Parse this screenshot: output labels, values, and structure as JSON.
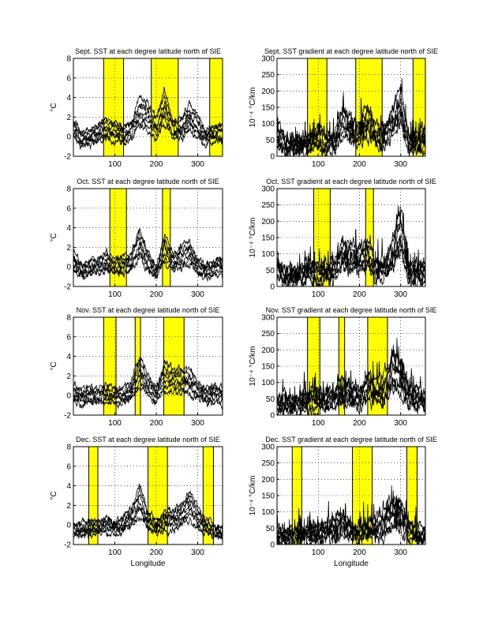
{
  "colors": {
    "band": "#ffff00",
    "line": "#000000",
    "axes": "#000000"
  },
  "chart_data": [
    {
      "type": "line",
      "title": "Sept. SST at each degree latitude north of SIE",
      "xlabel": "",
      "ylabel": "°C",
      "xlim": [
        0,
        360
      ],
      "ylim": [
        -2,
        8
      ],
      "xticks": [
        100,
        200,
        300
      ],
      "yticks": [
        -2,
        0,
        2,
        4,
        6,
        8
      ],
      "grid": true,
      "highlight_bands": [
        [
          73,
          121
        ],
        [
          188,
          253
        ],
        [
          329,
          360
        ]
      ],
      "n_series": 7,
      "series_profile": {
        "x": [
          0,
          20,
          40,
          60,
          80,
          100,
          120,
          140,
          160,
          180,
          200,
          220,
          240,
          260,
          280,
          300,
          320,
          340,
          360
        ],
        "y": [
          0.8,
          -0.3,
          0,
          0.3,
          0.8,
          0.5,
          0.2,
          0.6,
          2.5,
          2,
          1,
          3,
          0.8,
          0.8,
          2,
          1,
          0,
          0.3,
          0.5
        ]
      }
    },
    {
      "type": "line",
      "title": "Sept. SST gradient at each degree latitude north of SIE",
      "xlabel": "",
      "ylabel": "10⁻⁴ °C/km",
      "xlim": [
        0,
        360
      ],
      "ylim": [
        0,
        300
      ],
      "xticks": [
        100,
        200,
        300
      ],
      "yticks": [
        0,
        50,
        100,
        150,
        200,
        250,
        300
      ],
      "grid": true,
      "highlight_bands": [
        [
          74,
          121
        ],
        [
          191,
          255
        ],
        [
          330,
          360
        ]
      ],
      "n_series": 7,
      "series_profile": {
        "x": [
          0,
          20,
          40,
          60,
          80,
          100,
          120,
          140,
          160,
          180,
          200,
          220,
          240,
          260,
          280,
          300,
          320,
          340,
          360
        ],
        "y": [
          70,
          35,
          35,
          30,
          40,
          60,
          45,
          40,
          110,
          80,
          70,
          110,
          60,
          60,
          110,
          150,
          40,
          40,
          50
        ]
      }
    },
    {
      "type": "line",
      "title": "Oct. SST at each degree latitude north of SIE",
      "xlabel": "",
      "ylabel": "°C",
      "xlim": [
        0,
        360
      ],
      "ylim": [
        -2,
        8
      ],
      "xticks": [
        100,
        200,
        300
      ],
      "yticks": [
        -2,
        0,
        2,
        4,
        6,
        8
      ],
      "grid": true,
      "highlight_bands": [
        [
          88,
          128
        ],
        [
          215,
          234
        ]
      ],
      "n_series": 7,
      "series_profile": {
        "x": [
          0,
          20,
          40,
          60,
          80,
          100,
          120,
          140,
          160,
          180,
          200,
          220,
          240,
          260,
          280,
          300,
          320,
          340,
          360
        ],
        "y": [
          0.5,
          -0.3,
          0,
          0,
          0.6,
          0,
          0.3,
          0.5,
          2.5,
          0.5,
          -0.5,
          2,
          0.5,
          1,
          1.5,
          0,
          -0.5,
          0,
          0.2
        ]
      }
    },
    {
      "type": "line",
      "title": "Oct. SST gradient at each degree latitude north of SIE",
      "xlabel": "",
      "ylabel": "10⁻⁴ °C/km",
      "xlim": [
        0,
        360
      ],
      "ylim": [
        0,
        300
      ],
      "xticks": [
        100,
        200,
        300
      ],
      "yticks": [
        0,
        50,
        100,
        150,
        200,
        250,
        300
      ],
      "grid": true,
      "highlight_bands": [
        [
          89,
          129
        ],
        [
          215,
          234
        ]
      ],
      "n_series": 7,
      "series_profile": {
        "x": [
          0,
          20,
          40,
          60,
          80,
          100,
          120,
          140,
          160,
          180,
          200,
          220,
          240,
          260,
          280,
          300,
          320,
          340,
          360
        ],
        "y": [
          60,
          30,
          30,
          35,
          50,
          40,
          40,
          50,
          100,
          90,
          80,
          100,
          50,
          60,
          100,
          170,
          40,
          40,
          50
        ]
      }
    },
    {
      "type": "line",
      "title": "Nov. SST at each degree latitude north of SIE",
      "xlabel": "",
      "ylabel": "°C",
      "xlim": [
        0,
        360
      ],
      "ylim": [
        -2,
        8
      ],
      "xticks": [
        100,
        200,
        300
      ],
      "yticks": [
        -2,
        0,
        2,
        4,
        6,
        8
      ],
      "grid": true,
      "highlight_bands": [
        [
          73,
          103
        ],
        [
          149,
          162
        ],
        [
          218,
          267
        ]
      ],
      "n_series": 7,
      "series_profile": {
        "x": [
          0,
          20,
          40,
          60,
          80,
          100,
          120,
          140,
          160,
          180,
          200,
          220,
          240,
          260,
          280,
          300,
          320,
          340,
          360
        ],
        "y": [
          0.2,
          0,
          0,
          0,
          0.2,
          0,
          0,
          0.5,
          2.5,
          1,
          0,
          2,
          1.5,
          1.5,
          1.5,
          0.5,
          0,
          0.3,
          0
        ]
      }
    },
    {
      "type": "line",
      "title": "Nov. SST gradient at each degree latitude north of SIE",
      "xlabel": "",
      "ylabel": "10⁻⁴ °C/km",
      "xlim": [
        0,
        360
      ],
      "ylim": [
        0,
        300
      ],
      "xticks": [
        100,
        200,
        300
      ],
      "yticks": [
        0,
        50,
        100,
        150,
        200,
        250,
        300
      ],
      "grid": true,
      "highlight_bands": [
        [
          74,
          104
        ],
        [
          150,
          164
        ],
        [
          220,
          268
        ]
      ],
      "n_series": 7,
      "series_profile": {
        "x": [
          0,
          20,
          40,
          60,
          80,
          100,
          120,
          140,
          160,
          180,
          200,
          220,
          240,
          260,
          280,
          300,
          320,
          340,
          360
        ],
        "y": [
          40,
          35,
          30,
          35,
          50,
          45,
          45,
          50,
          80,
          60,
          50,
          90,
          70,
          80,
          140,
          120,
          60,
          50,
          50
        ]
      }
    },
    {
      "type": "line",
      "title": "Dec. SST at each degree latitude north of SIE",
      "xlabel": "Longitude",
      "ylabel": "°C",
      "xlim": [
        0,
        360
      ],
      "ylim": [
        -2,
        8
      ],
      "xticks": [
        100,
        200,
        300
      ],
      "yticks": [
        -2,
        0,
        2,
        4,
        6,
        8
      ],
      "grid": true,
      "highlight_bands": [
        [
          37,
          59
        ],
        [
          180,
          227
        ],
        [
          313,
          338
        ]
      ],
      "n_series": 7,
      "series_profile": {
        "x": [
          0,
          20,
          40,
          60,
          80,
          100,
          120,
          140,
          160,
          180,
          200,
          220,
          240,
          260,
          280,
          300,
          320,
          340,
          360
        ],
        "y": [
          -0.3,
          -0.5,
          -0.3,
          -0.2,
          0,
          -0.3,
          0,
          0.8,
          2.5,
          0.5,
          -0.2,
          0.5,
          0.5,
          1,
          2,
          0.8,
          -0.2,
          -0.5,
          -0.8
        ]
      }
    },
    {
      "type": "line",
      "title": "Dec. SST gradient at each degree latitude north of SIE",
      "xlabel": "Longitude",
      "ylabel": "10⁻⁴ °C/km",
      "xlim": [
        0,
        360
      ],
      "ylim": [
        0,
        300
      ],
      "xticks": [
        100,
        200,
        300
      ],
      "yticks": [
        0,
        50,
        100,
        150,
        200,
        250,
        300
      ],
      "grid": true,
      "highlight_bands": [
        [
          37,
          60
        ],
        [
          183,
          231
        ],
        [
          315,
          340
        ]
      ],
      "n_series": 7,
      "series_profile": {
        "x": [
          0,
          20,
          40,
          60,
          80,
          100,
          120,
          140,
          160,
          180,
          200,
          220,
          240,
          260,
          280,
          300,
          320,
          340,
          360
        ],
        "y": [
          25,
          25,
          25,
          30,
          30,
          35,
          40,
          50,
          70,
          40,
          30,
          50,
          50,
          70,
          100,
          90,
          40,
          30,
          30
        ]
      }
    }
  ]
}
